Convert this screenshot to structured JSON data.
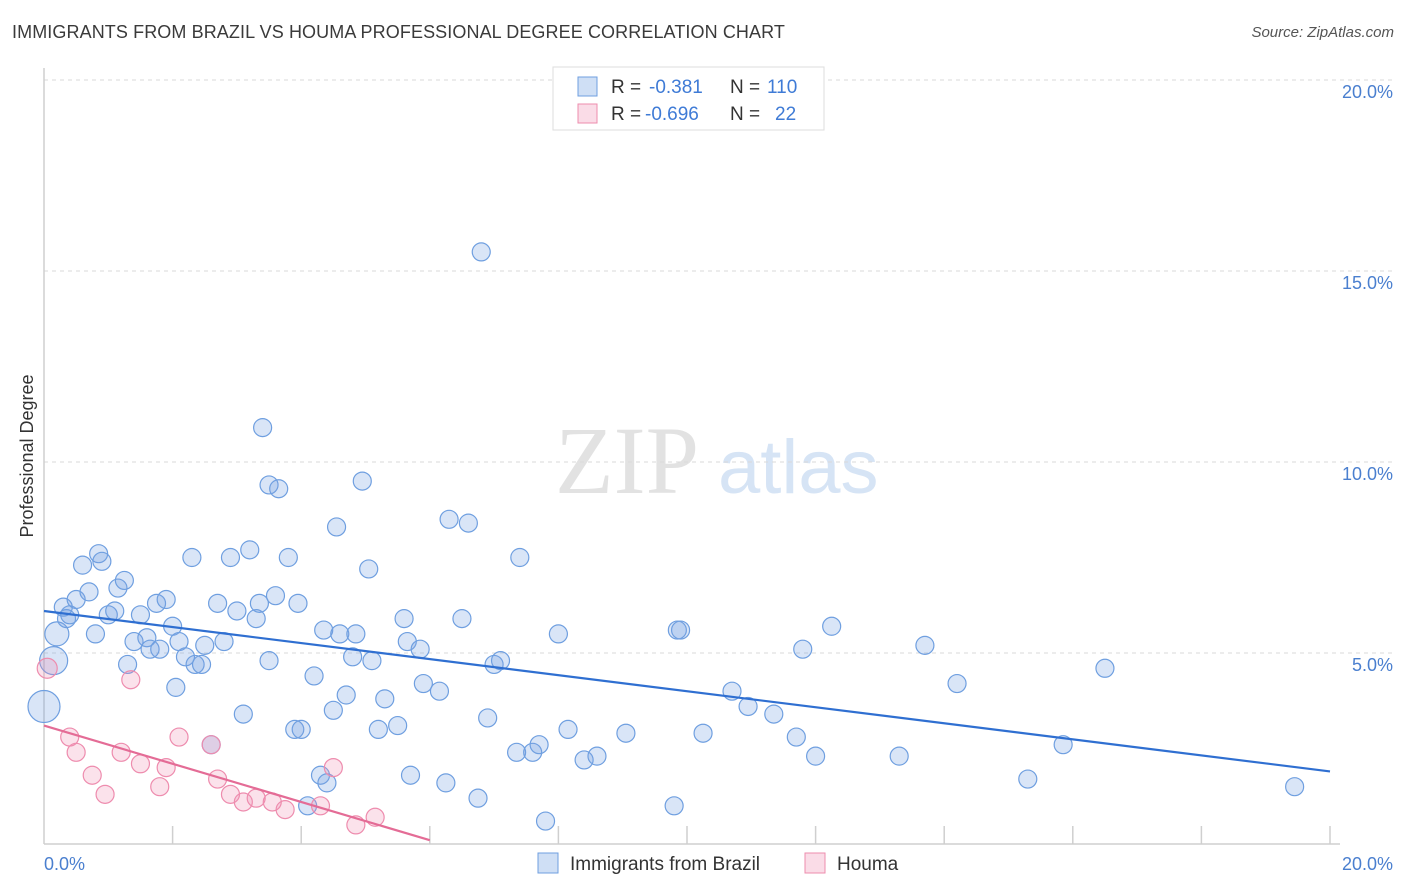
{
  "title": "IMMIGRANTS FROM BRAZIL VS HOUMA PROFESSIONAL DEGREE CORRELATION CHART",
  "source": "Source: ZipAtlas.com",
  "watermark": {
    "zip": "ZIP",
    "atlas": "atlas"
  },
  "legend_box": {
    "rows": [
      {
        "r_label": "R =",
        "r_value": "-0.381",
        "n_label": "N =",
        "n_value": "110",
        "color": "#6f9fe0"
      },
      {
        "r_label": "R =",
        "r_value": "-0.696",
        "n_label": "N =",
        "n_value": "22",
        "color": "#ee8cae"
      }
    ]
  },
  "chart_data": {
    "type": "scatter",
    "xlabel": "",
    "ylabel": "Professional Degree",
    "xlim": [
      0,
      20
    ],
    "ylim": [
      0,
      20
    ],
    "x_tick_labels": [
      "0.0%",
      "20.0%"
    ],
    "y_tick_values": [
      5,
      10,
      15,
      20
    ],
    "y_tick_labels": [
      "5.0%",
      "10.0%",
      "15.0%",
      "20.0%"
    ],
    "grid": true,
    "legend_position": "bottom-center",
    "series": [
      {
        "name": "Immigrants from Brazil",
        "color": "#6f9fe0",
        "trend": {
          "x": [
            0.0,
            20.0
          ],
          "y": [
            6.1,
            1.9
          ]
        },
        "points": [
          [
            0.0,
            3.6,
            16
          ],
          [
            0.15,
            4.8,
            14
          ],
          [
            0.2,
            5.5,
            12
          ],
          [
            0.3,
            6.2,
            9
          ],
          [
            0.35,
            5.9,
            9
          ],
          [
            0.4,
            6.0,
            9
          ],
          [
            0.5,
            6.4,
            9
          ],
          [
            0.6,
            7.3,
            9
          ],
          [
            0.7,
            6.6,
            9
          ],
          [
            0.8,
            5.5,
            9
          ],
          [
            0.85,
            7.6,
            9
          ],
          [
            0.9,
            7.4,
            9
          ],
          [
            1.0,
            6.0,
            9
          ],
          [
            1.1,
            6.1,
            9
          ],
          [
            1.15,
            6.7,
            9
          ],
          [
            1.25,
            6.9,
            9
          ],
          [
            1.3,
            4.7,
            9
          ],
          [
            1.4,
            5.3,
            9
          ],
          [
            1.5,
            6.0,
            9
          ],
          [
            1.6,
            5.4,
            9
          ],
          [
            1.65,
            5.1,
            9
          ],
          [
            1.75,
            6.3,
            9
          ],
          [
            1.8,
            5.1,
            9
          ],
          [
            1.9,
            6.4,
            9
          ],
          [
            2.0,
            5.7,
            9
          ],
          [
            2.05,
            4.1,
            9
          ],
          [
            2.1,
            5.3,
            9
          ],
          [
            2.2,
            4.9,
            9
          ],
          [
            2.3,
            7.5,
            9
          ],
          [
            2.35,
            4.7,
            9
          ],
          [
            2.45,
            4.7,
            9
          ],
          [
            2.5,
            5.2,
            9
          ],
          [
            2.6,
            2.6,
            9
          ],
          [
            2.7,
            6.3,
            9
          ],
          [
            2.8,
            5.3,
            9
          ],
          [
            2.9,
            7.5,
            9
          ],
          [
            3.0,
            6.1,
            9
          ],
          [
            3.1,
            3.4,
            9
          ],
          [
            3.2,
            7.7,
            9
          ],
          [
            3.3,
            5.9,
            9
          ],
          [
            3.35,
            6.3,
            9
          ],
          [
            3.5,
            4.8,
            9
          ],
          [
            3.4,
            10.9,
            9
          ],
          [
            3.5,
            9.4,
            9
          ],
          [
            3.6,
            6.5,
            9
          ],
          [
            3.65,
            9.3,
            9
          ],
          [
            3.8,
            7.5,
            9
          ],
          [
            3.9,
            3.0,
            9
          ],
          [
            3.95,
            6.3,
            9
          ],
          [
            4.0,
            3.0,
            9
          ],
          [
            4.1,
            1.0,
            9
          ],
          [
            4.2,
            4.4,
            9
          ],
          [
            4.3,
            1.8,
            9
          ],
          [
            4.35,
            5.6,
            9
          ],
          [
            4.4,
            1.6,
            9
          ],
          [
            4.5,
            3.5,
            9
          ],
          [
            4.55,
            8.3,
            9
          ],
          [
            4.6,
            5.5,
            9
          ],
          [
            4.7,
            3.9,
            9
          ],
          [
            4.8,
            4.9,
            9
          ],
          [
            4.85,
            5.5,
            9
          ],
          [
            4.95,
            9.5,
            9
          ],
          [
            5.05,
            7.2,
            9
          ],
          [
            5.1,
            4.8,
            9
          ],
          [
            5.2,
            3.0,
            9
          ],
          [
            5.3,
            3.8,
            9
          ],
          [
            5.5,
            3.1,
            9
          ],
          [
            5.6,
            5.9,
            9
          ],
          [
            5.65,
            5.3,
            9
          ],
          [
            5.7,
            1.8,
            9
          ],
          [
            5.85,
            5.1,
            9
          ],
          [
            5.9,
            4.2,
            9
          ],
          [
            6.15,
            4.0,
            9
          ],
          [
            6.25,
            1.6,
            9
          ],
          [
            6.3,
            8.5,
            9
          ],
          [
            6.5,
            5.9,
            9
          ],
          [
            6.6,
            8.4,
            9
          ],
          [
            6.75,
            1.2,
            9
          ],
          [
            6.8,
            15.5,
            9
          ],
          [
            6.9,
            3.3,
            9
          ],
          [
            7.0,
            4.7,
            9
          ],
          [
            7.1,
            4.8,
            9
          ],
          [
            7.35,
            2.4,
            9
          ],
          [
            7.4,
            7.5,
            9
          ],
          [
            7.6,
            2.4,
            9
          ],
          [
            7.7,
            2.6,
            9
          ],
          [
            7.8,
            0.6,
            9
          ],
          [
            8.0,
            5.5,
            9
          ],
          [
            8.15,
            3.0,
            9
          ],
          [
            8.4,
            2.2,
            9
          ],
          [
            8.6,
            2.3,
            9
          ],
          [
            9.05,
            2.9,
            9
          ],
          [
            9.8,
            1.0,
            9
          ],
          [
            9.85,
            5.6,
            9
          ],
          [
            9.9,
            5.6,
            9
          ],
          [
            10.25,
            2.9,
            9
          ],
          [
            10.7,
            4.0,
            9
          ],
          [
            10.95,
            3.6,
            9
          ],
          [
            11.35,
            3.4,
            9
          ],
          [
            11.7,
            2.8,
            9
          ],
          [
            11.8,
            5.1,
            9
          ],
          [
            12.0,
            2.3,
            9
          ],
          [
            12.25,
            5.7,
            9
          ],
          [
            13.3,
            2.3,
            9
          ],
          [
            13.7,
            5.2,
            9
          ],
          [
            14.2,
            4.2,
            9
          ],
          [
            15.3,
            1.7,
            9
          ],
          [
            15.85,
            2.6,
            9
          ],
          [
            16.5,
            4.6,
            9
          ],
          [
            19.45,
            1.5,
            9
          ]
        ]
      },
      {
        "name": "Houma",
        "color": "#ee8cae",
        "trend": {
          "x": [
            0.0,
            6.0
          ],
          "y": [
            3.1,
            0.1
          ]
        },
        "points": [
          [
            0.05,
            4.6,
            10
          ],
          [
            0.4,
            2.8,
            9
          ],
          [
            0.5,
            2.4,
            9
          ],
          [
            0.75,
            1.8,
            9
          ],
          [
            0.95,
            1.3,
            9
          ],
          [
            1.2,
            2.4,
            9
          ],
          [
            1.35,
            4.3,
            9
          ],
          [
            1.5,
            2.1,
            9
          ],
          [
            1.8,
            1.5,
            9
          ],
          [
            1.9,
            2.0,
            9
          ],
          [
            2.1,
            2.8,
            9
          ],
          [
            2.6,
            2.6,
            9
          ],
          [
            2.7,
            1.7,
            9
          ],
          [
            2.9,
            1.3,
            9
          ],
          [
            3.1,
            1.1,
            9
          ],
          [
            3.3,
            1.2,
            9
          ],
          [
            3.55,
            1.1,
            9
          ],
          [
            3.75,
            0.9,
            9
          ],
          [
            4.3,
            1.0,
            9
          ],
          [
            4.5,
            2.0,
            9
          ],
          [
            4.85,
            0.5,
            9
          ],
          [
            5.15,
            0.7,
            9
          ]
        ]
      }
    ]
  }
}
